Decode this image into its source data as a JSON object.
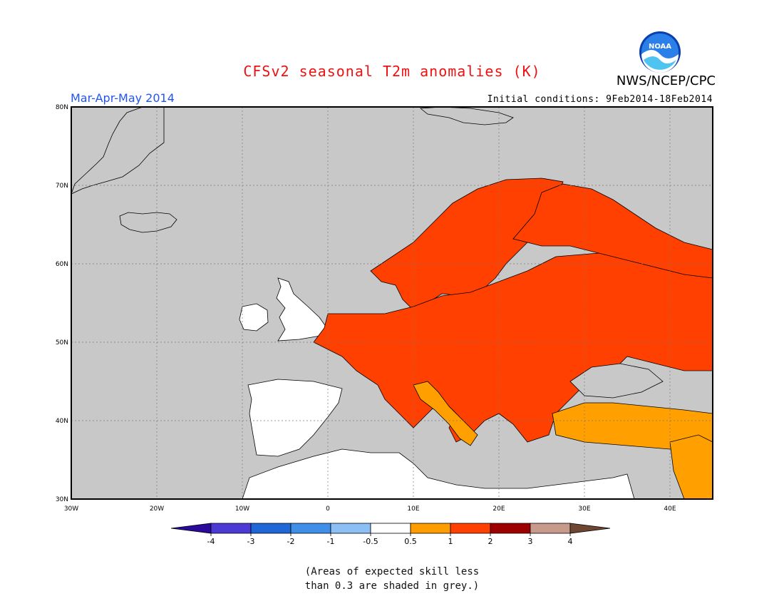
{
  "header": {
    "title": "CFSv2 seasonal T2m anomalies (K)",
    "agency": "NWS/NCEP/CPC",
    "logo_text": "NOAA",
    "period": "Mar-Apr-May 2014",
    "initial_conditions": "Initial conditions: 9Feb2014-18Feb2014"
  },
  "map": {
    "lon_range": [
      -30,
      45
    ],
    "lat_range": [
      30,
      80
    ],
    "lon_ticks": [
      {
        "value": -30,
        "label": "30W"
      },
      {
        "value": -20,
        "label": "20W"
      },
      {
        "value": -10,
        "label": "10W"
      },
      {
        "value": 0,
        "label": "0"
      },
      {
        "value": 10,
        "label": "10E"
      },
      {
        "value": 20,
        "label": "20E"
      },
      {
        "value": 30,
        "label": "30E"
      },
      {
        "value": 40,
        "label": "40E"
      }
    ],
    "lat_ticks": [
      {
        "value": 80,
        "label": "80N"
      },
      {
        "value": 70,
        "label": "70N"
      },
      {
        "value": 60,
        "label": "60N"
      },
      {
        "value": 50,
        "label": "50N"
      },
      {
        "value": 40,
        "label": "40N"
      },
      {
        "value": 30,
        "label": "30N"
      }
    ],
    "grid": true,
    "background_color": "#c8c8c8"
  },
  "colorbar": {
    "labels": [
      "-4",
      "-3",
      "-2",
      "-1",
      "-0.5",
      "0.5",
      "1",
      "2",
      "3",
      "4"
    ],
    "colors": [
      "#2a0a9a",
      "#4b3bd4",
      "#1f66d6",
      "#3f8fe8",
      "#8cc0f4",
      "#ffffff",
      "#ff9c00",
      "#ff4000",
      "#9c0000",
      "#c79a8c",
      "#6e4632"
    ]
  },
  "note": {
    "line1": "(Areas of expected skill less",
    "line2": "than 0.3 are shaded in grey.)"
  }
}
